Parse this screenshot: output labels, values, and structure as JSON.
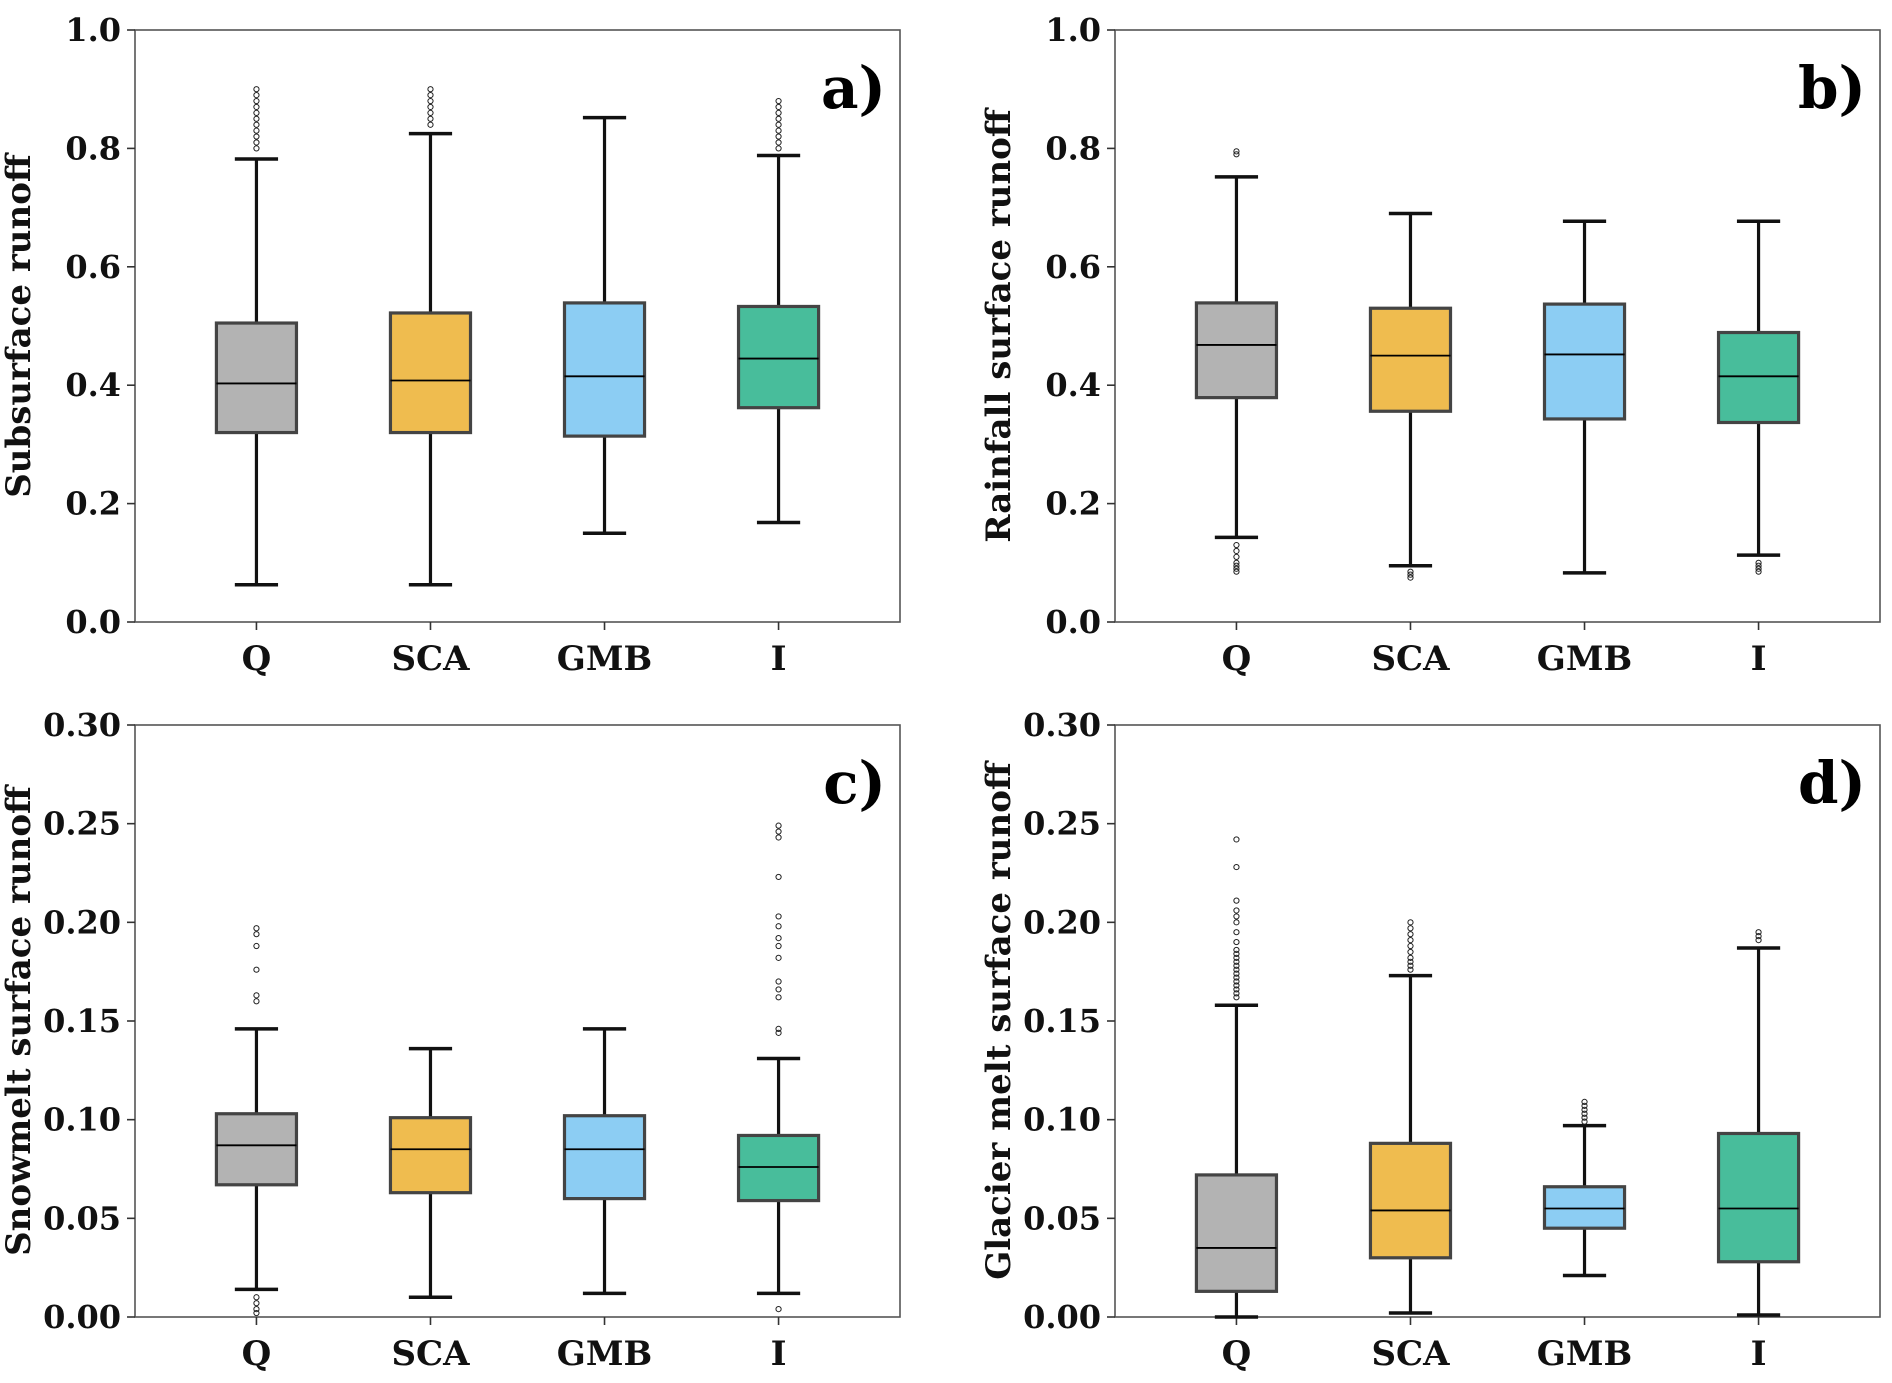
{
  "colors": {
    "Q": "#b3b3b3",
    "SCA": "#efbc4f",
    "GMB": "#8ccdf3",
    "I": "#48bd9b",
    "box_edge": "#444444",
    "whisker": "#111111"
  },
  "chart_data": [
    {
      "type": "box",
      "panel": "a)",
      "ylabel": "Subsurface runoff",
      "ylim": [
        0.0,
        1.0
      ],
      "yticks": [
        "0.0",
        "0.2",
        "0.4",
        "0.6",
        "0.8",
        "1.0"
      ],
      "categories": [
        "Q",
        "SCA",
        "GMB",
        "I"
      ],
      "boxes": [
        {
          "q1": 0.32,
          "median": 0.403,
          "q3": 0.505,
          "wlo": 0.063,
          "whi": 0.782,
          "outliers": [
            0.8,
            0.81,
            0.82,
            0.83,
            0.84,
            0.85,
            0.86,
            0.87,
            0.88,
            0.89,
            0.9
          ]
        },
        {
          "q1": 0.32,
          "median": 0.408,
          "q3": 0.522,
          "wlo": 0.063,
          "whi": 0.825,
          "outliers": [
            0.84,
            0.85,
            0.86,
            0.87,
            0.88,
            0.89,
            0.9
          ]
        },
        {
          "q1": 0.314,
          "median": 0.415,
          "q3": 0.539,
          "wlo": 0.15,
          "whi": 0.852,
          "outliers": []
        },
        {
          "q1": 0.362,
          "median": 0.445,
          "q3": 0.533,
          "wlo": 0.168,
          "whi": 0.788,
          "outliers": [
            0.8,
            0.81,
            0.82,
            0.83,
            0.84,
            0.85,
            0.86,
            0.87,
            0.88
          ]
        }
      ]
    },
    {
      "type": "box",
      "panel": "b)",
      "ylabel": "Rainfall surface runoff",
      "ylim": [
        0.0,
        1.0
      ],
      "yticks": [
        "0.0",
        "0.2",
        "0.4",
        "0.6",
        "0.8",
        "1.0"
      ],
      "categories": [
        "Q",
        "SCA",
        "GMB",
        "I"
      ],
      "boxes": [
        {
          "q1": 0.379,
          "median": 0.468,
          "q3": 0.539,
          "wlo": 0.143,
          "whi": 0.752,
          "outliers": [
            0.13,
            0.12,
            0.11,
            0.1,
            0.095,
            0.09,
            0.085,
            0.79,
            0.795
          ]
        },
        {
          "q1": 0.356,
          "median": 0.45,
          "q3": 0.53,
          "wlo": 0.095,
          "whi": 0.69,
          "outliers": [
            0.085,
            0.08,
            0.075
          ]
        },
        {
          "q1": 0.343,
          "median": 0.452,
          "q3": 0.537,
          "wlo": 0.083,
          "whi": 0.677,
          "outliers": []
        },
        {
          "q1": 0.337,
          "median": 0.415,
          "q3": 0.489,
          "wlo": 0.113,
          "whi": 0.677,
          "outliers": [
            0.1,
            0.095,
            0.09,
            0.085
          ]
        }
      ]
    },
    {
      "type": "box",
      "panel": "c)",
      "ylabel": "Snowmelt surface runoff",
      "ylim": [
        0.0,
        0.3
      ],
      "yticks": [
        "0.00",
        "0.05",
        "0.10",
        "0.15",
        "0.20",
        "0.25",
        "0.30"
      ],
      "categories": [
        "Q",
        "SCA",
        "GMB",
        "I"
      ],
      "boxes": [
        {
          "q1": 0.067,
          "median": 0.087,
          "q3": 0.103,
          "wlo": 0.014,
          "whi": 0.146,
          "outliers": [
            0.16,
            0.163,
            0.176,
            0.188,
            0.194,
            0.197,
            0.01,
            0.007,
            0.004,
            0.002
          ]
        },
        {
          "q1": 0.063,
          "median": 0.085,
          "q3": 0.101,
          "wlo": 0.01,
          "whi": 0.136,
          "outliers": []
        },
        {
          "q1": 0.06,
          "median": 0.085,
          "q3": 0.102,
          "wlo": 0.012,
          "whi": 0.146,
          "outliers": []
        },
        {
          "q1": 0.059,
          "median": 0.076,
          "q3": 0.092,
          "wlo": 0.012,
          "whi": 0.131,
          "outliers": [
            0.144,
            0.146,
            0.162,
            0.166,
            0.17,
            0.182,
            0.188,
            0.192,
            0.198,
            0.203,
            0.223,
            0.243,
            0.246,
            0.249,
            0.004
          ]
        }
      ]
    },
    {
      "type": "box",
      "panel": "d)",
      "ylabel": "Glacier melt surface runoff",
      "ylim": [
        0.0,
        0.3
      ],
      "yticks": [
        "0.00",
        "0.05",
        "0.10",
        "0.15",
        "0.20",
        "0.25",
        "0.30"
      ],
      "categories": [
        "Q",
        "SCA",
        "GMB",
        "I"
      ],
      "boxes": [
        {
          "q1": 0.013,
          "median": 0.035,
          "q3": 0.072,
          "wlo": 0.0,
          "whi": 0.158,
          "outliers": [
            0.162,
            0.164,
            0.166,
            0.168,
            0.17,
            0.172,
            0.174,
            0.176,
            0.178,
            0.18,
            0.182,
            0.184,
            0.186,
            0.19,
            0.195,
            0.2,
            0.203,
            0.206,
            0.211,
            0.228,
            0.242
          ]
        },
        {
          "q1": 0.03,
          "median": 0.054,
          "q3": 0.088,
          "wlo": 0.002,
          "whi": 0.173,
          "outliers": [
            0.176,
            0.178,
            0.18,
            0.182,
            0.185,
            0.188,
            0.191,
            0.194,
            0.197,
            0.2
          ]
        },
        {
          "q1": 0.045,
          "median": 0.055,
          "q3": 0.066,
          "wlo": 0.021,
          "whi": 0.097,
          "outliers": [
            0.099,
            0.101,
            0.103,
            0.105,
            0.107,
            0.109
          ]
        },
        {
          "q1": 0.028,
          "median": 0.055,
          "q3": 0.093,
          "wlo": 0.001,
          "whi": 0.187,
          "outliers": [
            0.191,
            0.193,
            0.195
          ]
        }
      ]
    }
  ]
}
